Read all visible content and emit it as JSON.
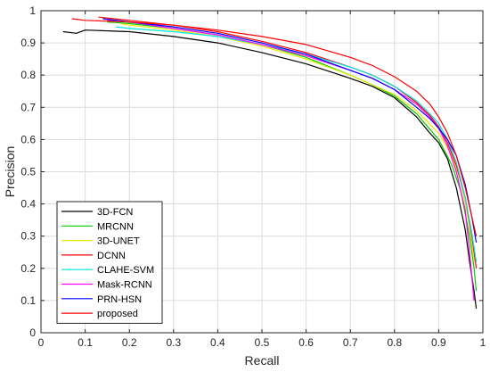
{
  "chart_data": {
    "type": "line",
    "title": "",
    "xlabel": "Recall",
    "ylabel": "Precision",
    "xlim": [
      0,
      1
    ],
    "ylim": [
      0,
      1
    ],
    "xticks": [
      "0",
      "0.1",
      "0.2",
      "0.3",
      "0.4",
      "0.5",
      "0.6",
      "0.7",
      "0.8",
      "0.9",
      "1"
    ],
    "yticks": [
      "0",
      "0.1",
      "0.2",
      "0.3",
      "0.4",
      "0.5",
      "0.6",
      "0.7",
      "0.8",
      "0.9",
      "1"
    ],
    "grid": true,
    "legend_position": "bottom-left",
    "series": [
      {
        "name": "3D-FCN",
        "color": "#000000",
        "x": [
          0.05,
          0.08,
          0.1,
          0.2,
          0.3,
          0.4,
          0.5,
          0.6,
          0.7,
          0.75,
          0.8,
          0.85,
          0.88,
          0.9,
          0.92,
          0.94,
          0.96,
          0.97,
          0.98,
          0.985
        ],
        "y": [
          0.935,
          0.93,
          0.94,
          0.935,
          0.92,
          0.9,
          0.87,
          0.835,
          0.79,
          0.765,
          0.73,
          0.67,
          0.62,
          0.59,
          0.54,
          0.45,
          0.32,
          0.22,
          0.13,
          0.075
        ]
      },
      {
        "name": "MRCNN",
        "color": "#00cc00",
        "x": [
          0.15,
          0.2,
          0.3,
          0.4,
          0.5,
          0.6,
          0.7,
          0.75,
          0.8,
          0.85,
          0.9,
          0.93,
          0.95,
          0.97,
          0.98,
          0.985
        ],
        "y": [
          0.965,
          0.96,
          0.945,
          0.925,
          0.895,
          0.855,
          0.8,
          0.77,
          0.735,
          0.68,
          0.6,
          0.52,
          0.44,
          0.3,
          0.2,
          0.13
        ]
      },
      {
        "name": "3D-UNET",
        "color": "#e8e800",
        "x": [
          0.18,
          0.2,
          0.3,
          0.4,
          0.5,
          0.6,
          0.7,
          0.75,
          0.8,
          0.85,
          0.9,
          0.93,
          0.95,
          0.97,
          0.98
        ],
        "y": [
          0.96,
          0.955,
          0.94,
          0.92,
          0.89,
          0.85,
          0.8,
          0.77,
          0.74,
          0.69,
          0.62,
          0.55,
          0.47,
          0.33,
          0.22
        ]
      },
      {
        "name": "DCNN",
        "color": "#ff0000",
        "x": [
          0.13,
          0.2,
          0.3,
          0.4,
          0.5,
          0.6,
          0.7,
          0.75,
          0.8,
          0.85,
          0.88,
          0.9,
          0.92,
          0.94,
          0.96,
          0.975,
          0.985
        ],
        "y": [
          0.98,
          0.97,
          0.955,
          0.935,
          0.905,
          0.87,
          0.825,
          0.8,
          0.765,
          0.715,
          0.675,
          0.64,
          0.59,
          0.52,
          0.42,
          0.3,
          0.2
        ]
      },
      {
        "name": "CLAHE-SVM",
        "color": "#00e5e5",
        "x": [
          0.17,
          0.2,
          0.3,
          0.4,
          0.5,
          0.6,
          0.7,
          0.75,
          0.8,
          0.85,
          0.88,
          0.9,
          0.92,
          0.94,
          0.96,
          0.975,
          0.985
        ],
        "y": [
          0.95,
          0.945,
          0.935,
          0.92,
          0.895,
          0.865,
          0.825,
          0.8,
          0.765,
          0.72,
          0.68,
          0.65,
          0.6,
          0.53,
          0.42,
          0.31,
          0.22
        ]
      },
      {
        "name": "Mask-RCNN",
        "color": "#ff00ff",
        "x": [
          0.15,
          0.2,
          0.3,
          0.4,
          0.5,
          0.6,
          0.7,
          0.75,
          0.8,
          0.85,
          0.88,
          0.9,
          0.92,
          0.94,
          0.96,
          0.97,
          0.98
        ],
        "y": [
          0.97,
          0.965,
          0.945,
          0.925,
          0.895,
          0.86,
          0.815,
          0.79,
          0.755,
          0.71,
          0.67,
          0.635,
          0.58,
          0.5,
          0.38,
          0.25,
          0.1
        ]
      },
      {
        "name": "PRN-HSN",
        "color": "#0000ff",
        "x": [
          0.14,
          0.2,
          0.3,
          0.4,
          0.5,
          0.6,
          0.7,
          0.75,
          0.8,
          0.85,
          0.88,
          0.9,
          0.92,
          0.94,
          0.96,
          0.975,
          0.985
        ],
        "y": [
          0.975,
          0.965,
          0.95,
          0.93,
          0.9,
          0.865,
          0.815,
          0.79,
          0.755,
          0.7,
          0.665,
          0.635,
          0.6,
          0.55,
          0.46,
          0.36,
          0.28
        ]
      },
      {
        "name": "proposed",
        "color": "#ff0000",
        "x": [
          0.07,
          0.1,
          0.2,
          0.3,
          0.4,
          0.5,
          0.6,
          0.7,
          0.75,
          0.8,
          0.85,
          0.88,
          0.9,
          0.92,
          0.94,
          0.96,
          0.975,
          0.985
        ],
        "y": [
          0.975,
          0.97,
          0.965,
          0.955,
          0.94,
          0.92,
          0.895,
          0.855,
          0.83,
          0.795,
          0.75,
          0.71,
          0.67,
          0.62,
          0.55,
          0.45,
          0.36,
          0.3
        ]
      }
    ]
  }
}
